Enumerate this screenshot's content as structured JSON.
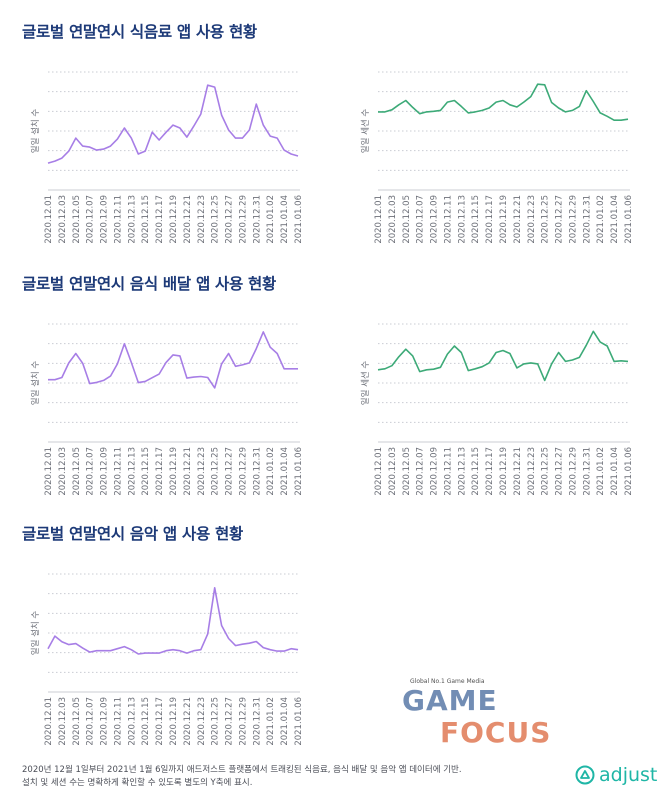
{
  "colors": {
    "title": "#1d3a78",
    "installs": "#a77ee6",
    "sessions": "#3daa78"
  },
  "sections": [
    {
      "title": "글로벌 연말연시 식음료 앱 사용 현황"
    },
    {
      "title": "글로벌 연말연시 음식 배달 앱 사용 현황"
    },
    {
      "title": "글로벌 연말연시 음악 앱 사용 현황"
    }
  ],
  "chart_data": [
    {
      "id": "food-installs",
      "type": "line",
      "section": 0,
      "title": "글로벌 연말연시 식음료 앱 사용 현황",
      "ylabel": "일일 설치 수",
      "xlabel": "",
      "series_color": "installs",
      "ylim": [
        0,
        6
      ],
      "grid": true,
      "tick_labels": [
        "2020.12.01",
        "2020.12.03",
        "2020.12.05",
        "2020.12.07",
        "2020.12.09",
        "2020.12.11",
        "2020.12.13",
        "2020.12.15",
        "2020.12.17",
        "2020.12.19",
        "2020.12.21",
        "2020.12.23",
        "2020.12.25",
        "2020.12.27",
        "2020.12.29",
        "2020.12.31",
        "2021.01.02",
        "2021.01.04",
        "2021.01.06"
      ],
      "values": [
        1.37,
        1.47,
        1.62,
        1.98,
        2.64,
        2.23,
        2.18,
        2.03,
        2.08,
        2.23,
        2.59,
        3.15,
        2.64,
        1.83,
        1.98,
        2.94,
        2.54,
        2.94,
        3.3,
        3.15,
        2.69,
        3.25,
        3.86,
        5.33,
        5.23,
        3.81,
        3.05,
        2.64,
        2.64,
        3.05,
        4.37,
        3.3,
        2.74,
        2.64,
        2.03,
        1.83,
        1.73
      ]
    },
    {
      "id": "food-sessions",
      "type": "line",
      "section": 0,
      "title": "글로벌 연말연시 식음료 앱 사용 현황",
      "ylabel": "일일 세션 수",
      "xlabel": "",
      "series_color": "sessions",
      "ylim": [
        0,
        6
      ],
      "grid": true,
      "tick_labels": [
        "2020.12.01",
        "2020.12.03",
        "2020.12.05",
        "2020.12.07",
        "2020.12.09",
        "2020.12.11",
        "2020.12.13",
        "2020.12.15",
        "2020.12.17",
        "2020.12.19",
        "2020.12.21",
        "2020.12.23",
        "2020.12.25",
        "2020.12.27",
        "2020.12.29",
        "2020.12.31",
        "2021.01.02",
        "2021.01.04",
        "2021.01.06"
      ],
      "values": [
        3.97,
        3.97,
        4.08,
        4.33,
        4.55,
        4.2,
        3.88,
        3.97,
        4.0,
        4.05,
        4.47,
        4.55,
        4.25,
        3.92,
        3.97,
        4.05,
        4.17,
        4.47,
        4.55,
        4.33,
        4.22,
        4.47,
        4.75,
        5.38,
        5.35,
        4.45,
        4.17,
        3.97,
        4.05,
        4.25,
        5.05,
        4.5,
        3.92,
        3.75,
        3.55,
        3.55,
        3.6
      ]
    },
    {
      "id": "delivery-installs",
      "type": "line",
      "section": 1,
      "title": "글로벌 연말연시 음식 배달 앱 사용 현황",
      "ylabel": "일일 설치 수",
      "xlabel": "",
      "series_color": "installs",
      "ylim": [
        0,
        6
      ],
      "grid": true,
      "tick_labels": [
        "2020.12.01",
        "2020.12.03",
        "2020.12.05",
        "2020.12.07",
        "2020.12.09",
        "2020.12.11",
        "2020.12.13",
        "2020.12.15",
        "2020.12.17",
        "2020.12.19",
        "2020.12.21",
        "2020.12.23",
        "2020.12.25",
        "2020.12.27",
        "2020.12.29",
        "2020.12.31",
        "2021.01.02",
        "2021.01.04",
        "2021.01.06"
      ],
      "values": [
        3.17,
        3.17,
        3.28,
        4.02,
        4.5,
        4.0,
        2.97,
        3.03,
        3.13,
        3.35,
        3.97,
        5.0,
        4.05,
        3.02,
        3.08,
        3.27,
        3.45,
        4.05,
        4.43,
        4.38,
        3.25,
        3.3,
        3.33,
        3.28,
        2.75,
        3.97,
        4.5,
        3.85,
        3.92,
        4.02,
        4.75,
        5.6,
        4.82,
        4.5,
        3.72,
        3.72,
        3.72
      ]
    },
    {
      "id": "delivery-sessions",
      "type": "line",
      "section": 1,
      "title": "글로벌 연말연시 음식 배달 앱 사용 현황",
      "ylabel": "일일 세션 수",
      "xlabel": "",
      "series_color": "sessions",
      "ylim": [
        0,
        6
      ],
      "grid": true,
      "tick_labels": [
        "2020.12.01",
        "2020.12.03",
        "2020.12.05",
        "2020.12.07",
        "2020.12.09",
        "2020.12.11",
        "2020.12.13",
        "2020.12.15",
        "2020.12.17",
        "2020.12.19",
        "2020.12.21",
        "2020.12.23",
        "2020.12.25",
        "2020.12.27",
        "2020.12.29",
        "2020.12.31",
        "2021.01.02",
        "2021.01.04",
        "2021.01.06"
      ],
      "values": [
        3.67,
        3.72,
        3.88,
        4.33,
        4.72,
        4.38,
        3.58,
        3.67,
        3.7,
        3.8,
        4.47,
        4.88,
        4.55,
        3.63,
        3.72,
        3.83,
        4.02,
        4.55,
        4.65,
        4.5,
        3.77,
        3.97,
        4.02,
        3.97,
        3.13,
        3.97,
        4.55,
        4.1,
        4.17,
        4.3,
        4.92,
        5.63,
        5.08,
        4.88,
        4.1,
        4.13,
        4.1
      ]
    },
    {
      "id": "music-installs",
      "type": "line",
      "section": 2,
      "title": "글로벌 연말연시 음악 앱 사용 현황",
      "ylabel": "일일 설치 수",
      "xlabel": "",
      "series_color": "installs",
      "ylim": [
        0,
        6
      ],
      "grid": true,
      "tick_labels": [
        "2020.12.01",
        "2020.12.03",
        "2020.12.05",
        "2020.12.07",
        "2020.12.09",
        "2020.12.11",
        "2020.12.13",
        "2020.12.15",
        "2020.12.17",
        "2020.12.19",
        "2020.12.21",
        "2020.12.23",
        "2020.12.25",
        "2020.12.27",
        "2020.12.29",
        "2020.12.31",
        "2021.01.02",
        "2021.01.04",
        "2021.01.06"
      ],
      "values": [
        2.2,
        2.84,
        2.56,
        2.41,
        2.46,
        2.23,
        2.03,
        2.1,
        2.1,
        2.1,
        2.2,
        2.31,
        2.15,
        1.93,
        1.98,
        1.98,
        1.98,
        2.1,
        2.15,
        2.1,
        1.98,
        2.1,
        2.15,
        2.95,
        5.3,
        3.38,
        2.72,
        2.36,
        2.43,
        2.48,
        2.57,
        2.26,
        2.15,
        2.08,
        2.08,
        2.2,
        2.15
      ]
    }
  ],
  "footer": {
    "line1": "2020년 12월 1일부터 2021년 1월 6일까지 애드저스트 플랫폼에서 트래킹된 식음료, 음식 배달 및 음악 앱 데이터에 기반.",
    "line2": "설치 및 세션 수는 명확하게 확인할 수 있도록 별도의 Y축에 표시."
  },
  "brand": {
    "logo_text": "adjust"
  },
  "watermark": {
    "tagline": "Global No.1 Game Media",
    "word1": "GAME",
    "word2": "FOCUS"
  }
}
